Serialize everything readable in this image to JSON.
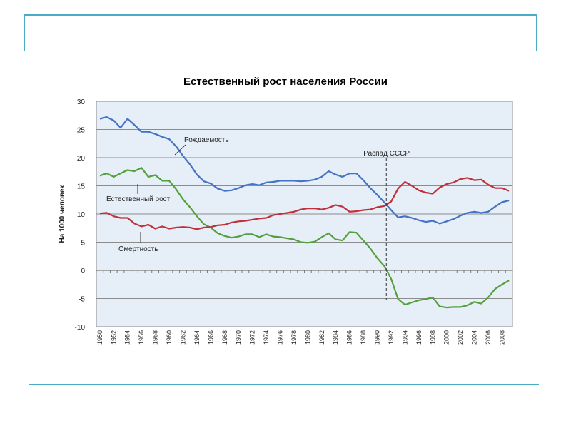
{
  "chart_data": {
    "type": "line",
    "title": "Естественный рост населения России",
    "xlabel": "",
    "ylabel": "На 1000 человек",
    "ylim": [
      -10,
      30
    ],
    "yticks": [
      30,
      25,
      20,
      15,
      10,
      5,
      0,
      -5,
      -10
    ],
    "xlim": [
      1950,
      2009
    ],
    "xtick_labels": [
      "1950",
      "1952",
      "1954",
      "1956",
      "1958",
      "1960",
      "1962",
      "1964",
      "1966",
      "1968",
      "1970",
      "1972",
      "1974",
      "1976",
      "1978",
      "1980",
      "1982",
      "1984",
      "1986",
      "1988",
      "1990",
      "1992",
      "1994",
      "1996",
      "1998",
      "2000",
      "2002",
      "2004",
      "2006",
      "2008"
    ],
    "grid": true,
    "x": [
      1950,
      1951,
      1952,
      1953,
      1954,
      1955,
      1956,
      1957,
      1958,
      1959,
      1960,
      1961,
      1962,
      1963,
      1964,
      1965,
      1966,
      1967,
      1968,
      1969,
      1970,
      1971,
      1972,
      1973,
      1974,
      1975,
      1976,
      1977,
      1978,
      1979,
      1980,
      1981,
      1982,
      1983,
      1984,
      1985,
      1986,
      1987,
      1988,
      1989,
      1990,
      1991,
      1992,
      1993,
      1994,
      1995,
      1996,
      1997,
      1998,
      1999,
      2000,
      2001,
      2002,
      2003,
      2004,
      2005,
      2006,
      2007,
      2008,
      2009
    ],
    "series": [
      {
        "name": "Рождаемость",
        "color": "#4472c4",
        "values": [
          26.9,
          27.2,
          26.6,
          25.3,
          26.9,
          25.8,
          24.6,
          24.6,
          24.2,
          23.7,
          23.3,
          22.0,
          20.3,
          18.8,
          17.0,
          15.8,
          15.4,
          14.5,
          14.1,
          14.2,
          14.6,
          15.1,
          15.3,
          15.1,
          15.6,
          15.7,
          15.9,
          15.9,
          15.9,
          15.8,
          15.9,
          16.1,
          16.6,
          17.6,
          17.0,
          16.6,
          17.2,
          17.2,
          16.0,
          14.6,
          13.4,
          12.1,
          10.7,
          9.4,
          9.6,
          9.3,
          8.9,
          8.6,
          8.8,
          8.3,
          8.7,
          9.1,
          9.7,
          10.2,
          10.4,
          10.2,
          10.4,
          11.3,
          12.1,
          12.4
        ]
      },
      {
        "name": "Естественный рост",
        "color": "#54a03c",
        "values": [
          16.8,
          17.2,
          16.6,
          17.2,
          17.8,
          17.6,
          18.2,
          16.6,
          16.9,
          15.9,
          15.9,
          14.4,
          12.6,
          11.2,
          9.6,
          8.2,
          7.6,
          6.6,
          6.1,
          5.8,
          6.0,
          6.4,
          6.4,
          5.9,
          6.4,
          6.0,
          5.9,
          5.7,
          5.5,
          5.0,
          4.9,
          5.1,
          5.9,
          6.6,
          5.5,
          5.3,
          6.8,
          6.7,
          5.3,
          3.9,
          2.2,
          0.8,
          -1.5,
          -5.1,
          -6.1,
          -5.7,
          -5.3,
          -5.1,
          -4.8,
          -6.4,
          -6.6,
          -6.5,
          -6.5,
          -6.2,
          -5.6,
          -5.9,
          -4.8,
          -3.3,
          -2.5,
          -1.8
        ]
      },
      {
        "name": "Смертность",
        "color": "#c0303a",
        "values": [
          10.1,
          10.2,
          9.6,
          9.3,
          9.3,
          8.3,
          7.8,
          8.1,
          7.4,
          7.8,
          7.4,
          7.6,
          7.7,
          7.6,
          7.3,
          7.6,
          7.7,
          8.0,
          8.1,
          8.5,
          8.7,
          8.8,
          9.0,
          9.2,
          9.3,
          9.8,
          10.0,
          10.2,
          10.4,
          10.8,
          11.0,
          11.0,
          10.8,
          11.1,
          11.6,
          11.3,
          10.4,
          10.5,
          10.7,
          10.8,
          11.2,
          11.4,
          12.2,
          14.5,
          15.7,
          15.0,
          14.2,
          13.8,
          13.6,
          14.7,
          15.3,
          15.6,
          16.2,
          16.4,
          16.0,
          16.1,
          15.2,
          14.6,
          14.6,
          14.1
        ]
      }
    ],
    "annotations": [
      {
        "text": "Рождаемость",
        "series": "Рождаемость"
      },
      {
        "text": "Естественный рост",
        "series": "Естественный рост"
      },
      {
        "text": "Смертность",
        "series": "Смертность"
      },
      {
        "text": "Распад СССР",
        "x": 1991
      }
    ]
  }
}
